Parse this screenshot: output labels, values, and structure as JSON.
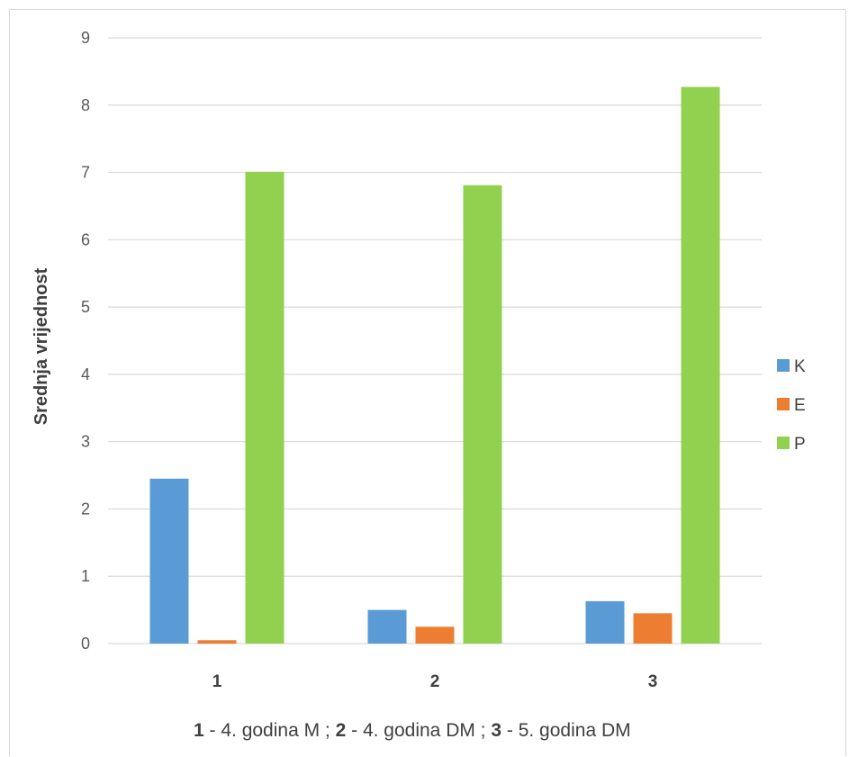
{
  "chart_data": {
    "type": "bar",
    "categories": [
      "1",
      "2",
      "3"
    ],
    "series": [
      {
        "name": "K",
        "values": [
          2.45,
          0.5,
          0.63
        ],
        "color": "#5B9BD5"
      },
      {
        "name": "E",
        "values": [
          0.05,
          0.25,
          0.45
        ],
        "color": "#ED7D31"
      },
      {
        "name": "P",
        "values": [
          7.01,
          6.81,
          8.27
        ],
        "color": "#92D050"
      }
    ],
    "ylabel": "Srednja vrijednost",
    "ylim": [
      0,
      9
    ],
    "yticks": [
      "0",
      "1",
      "2",
      "3",
      "4",
      "5",
      "6",
      "7",
      "8",
      "9"
    ],
    "grid": true,
    "legend_position": "right",
    "gridline_color": "#d9d9d9"
  },
  "caption": {
    "parts": [
      {
        "text": "1",
        "bold": true
      },
      {
        "text": " - 4. godina M ; ",
        "bold": false
      },
      {
        "text": "2",
        "bold": true
      },
      {
        "text": " - 4. godina DM ; ",
        "bold": false
      },
      {
        "text": "3",
        "bold": true
      },
      {
        "text": " - 5. godina DM",
        "bold": false
      }
    ]
  }
}
